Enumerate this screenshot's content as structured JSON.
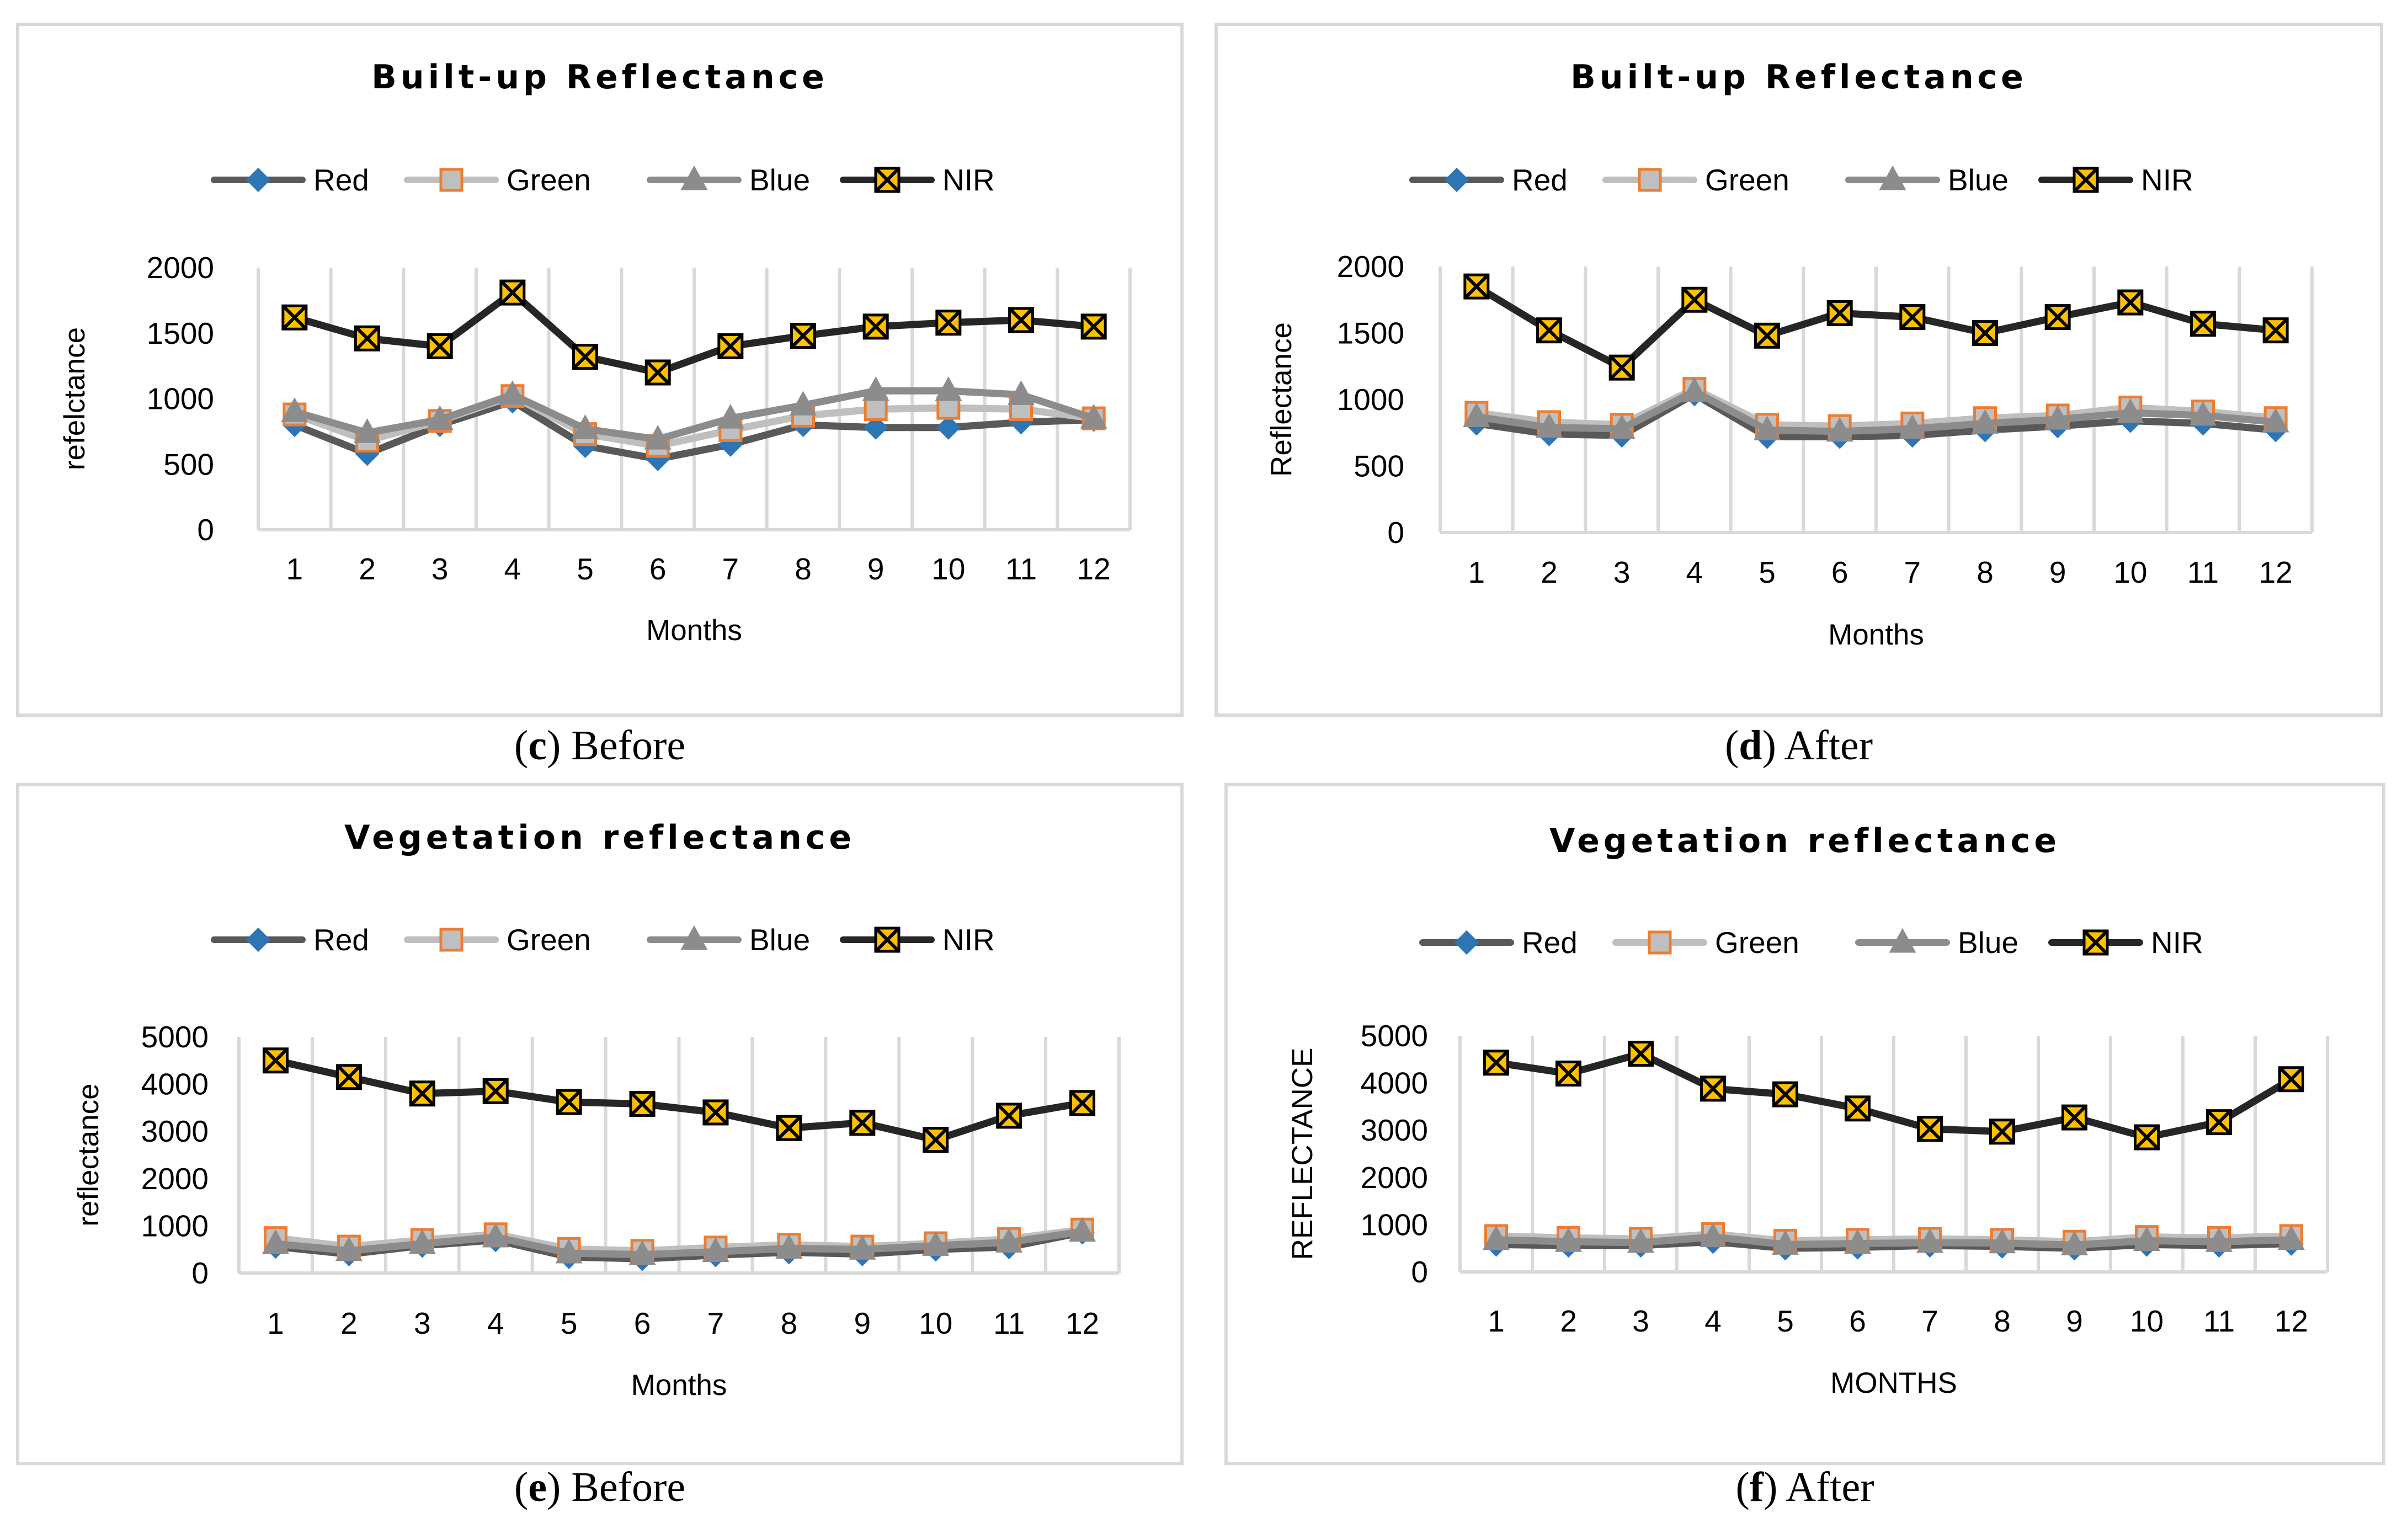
{
  "chart_data": [
    {
      "type": "line",
      "title": "Built-up Reflectance",
      "caption_letter": "c",
      "caption_text": " Before",
      "xlabel": "Months",
      "ylabel": "refelctance",
      "categories": [
        "1",
        "2",
        "3",
        "4",
        "5",
        "6",
        "7",
        "8",
        "9",
        "10",
        "11",
        "12"
      ],
      "ylim": [
        0,
        2000
      ],
      "yticks": [
        "0",
        "500",
        "1000",
        "1500",
        "2000"
      ],
      "ytick_values": [
        0,
        500,
        1000,
        1500,
        2000
      ],
      "legend_position": "top",
      "series": [
        {
          "name": "Red",
          "values": [
            800,
            580,
            800,
            980,
            640,
            540,
            650,
            800,
            780,
            780,
            820,
            840
          ]
        },
        {
          "name": "Green",
          "values": [
            880,
            680,
            830,
            1020,
            730,
            640,
            760,
            870,
            920,
            930,
            920,
            850
          ]
        },
        {
          "name": "Blue",
          "values": [
            900,
            740,
            840,
            1030,
            770,
            690,
            850,
            950,
            1060,
            1060,
            1030,
            850
          ]
        },
        {
          "name": "NIR",
          "values": [
            1620,
            1460,
            1400,
            1810,
            1320,
            1200,
            1400,
            1480,
            1550,
            1580,
            1600,
            1550
          ]
        }
      ]
    },
    {
      "type": "line",
      "title": "Built-up Reflectance",
      "caption_letter": "d",
      "caption_text": " After",
      "xlabel": "Months",
      "ylabel": "Reflectance",
      "categories": [
        "1",
        "2",
        "3",
        "4",
        "5",
        "6",
        "7",
        "8",
        "9",
        "10",
        "11",
        "12"
      ],
      "ylim": [
        0,
        2000
      ],
      "yticks": [
        "0",
        "500",
        "1000",
        "1500",
        "2000"
      ],
      "ytick_values": [
        0,
        500,
        1000,
        1500,
        2000
      ],
      "legend_position": "top",
      "series": [
        {
          "name": "Red",
          "values": [
            820,
            740,
            730,
            1040,
            720,
            720,
            730,
            770,
            800,
            840,
            820,
            770
          ]
        },
        {
          "name": "Green",
          "values": [
            900,
            830,
            810,
            1080,
            810,
            800,
            820,
            860,
            880,
            940,
            910,
            860
          ]
        },
        {
          "name": "Blue",
          "values": [
            870,
            790,
            780,
            1060,
            770,
            760,
            780,
            820,
            850,
            900,
            880,
            830
          ]
        },
        {
          "name": "NIR",
          "values": [
            1850,
            1520,
            1240,
            1750,
            1480,
            1650,
            1620,
            1500,
            1620,
            1730,
            1570,
            1520
          ]
        }
      ]
    },
    {
      "type": "line",
      "title": "Vegetation reflectance",
      "caption_letter": "e",
      "caption_text": " Before",
      "xlabel": "Months",
      "ylabel": "reflectance",
      "categories": [
        "1",
        "2",
        "3",
        "4",
        "5",
        "6",
        "7",
        "8",
        "9",
        "10",
        "11",
        "12"
      ],
      "ylim": [
        0,
        5000
      ],
      "yticks": [
        "0",
        "1000",
        "2000",
        "3000",
        "4000",
        "5000"
      ],
      "ytick_values": [
        0,
        1000,
        2000,
        3000,
        4000,
        5000
      ],
      "legend_position": "top",
      "series": [
        {
          "name": "Red",
          "values": [
            560,
            400,
            580,
            700,
            340,
            300,
            380,
            440,
            400,
            500,
            550,
            860
          ]
        },
        {
          "name": "Green",
          "values": [
            740,
            560,
            700,
            820,
            510,
            470,
            540,
            600,
            560,
            630,
            720,
            920
          ]
        },
        {
          "name": "Blue",
          "values": [
            620,
            470,
            620,
            760,
            420,
            390,
            450,
            520,
            500,
            580,
            650,
            880
          ]
        },
        {
          "name": "NIR",
          "values": [
            4500,
            4150,
            3800,
            3850,
            3620,
            3580,
            3400,
            3070,
            3180,
            2820,
            3330,
            3600
          ]
        }
      ]
    },
    {
      "type": "line",
      "title": "Vegetation reflectance",
      "caption_letter": "f",
      "caption_text": " After",
      "xlabel": "MONTHS",
      "ylabel": "REFLECTANCE",
      "categories": [
        "1",
        "2",
        "3",
        "4",
        "5",
        "6",
        "7",
        "8",
        "9",
        "10",
        "11",
        "12"
      ],
      "ylim": [
        0,
        5000
      ],
      "yticks": [
        "0",
        "1000",
        "2000",
        "3000",
        "4000",
        "5000"
      ],
      "ytick_values": [
        0,
        1000,
        2000,
        3000,
        4000,
        5000
      ],
      "legend_position": "top",
      "series": [
        {
          "name": "Red",
          "values": [
            580,
            560,
            560,
            640,
            500,
            520,
            560,
            540,
            500,
            580,
            560,
            600
          ]
        },
        {
          "name": "Green",
          "values": [
            760,
            720,
            700,
            800,
            660,
            680,
            700,
            680,
            640,
            740,
            720,
            760
          ]
        },
        {
          "name": "Blue",
          "values": [
            680,
            640,
            620,
            740,
            580,
            600,
            620,
            610,
            570,
            660,
            640,
            680
          ]
        },
        {
          "name": "NIR",
          "values": [
            4430,
            4200,
            4620,
            3880,
            3760,
            3460,
            3030,
            2970,
            3270,
            2850,
            3170,
            4080
          ]
        }
      ]
    }
  ],
  "legend_style": {
    "Red": {
      "line": "#595959",
      "marker": "diamond",
      "marker_fill": "#2e75b6",
      "marker_stroke": "#2e75b6"
    },
    "Green": {
      "line": "#bfbfbf",
      "marker": "square",
      "marker_fill": "#bfbfbf",
      "marker_stroke": "#ed7d31"
    },
    "Blue": {
      "line": "#8c8c8c",
      "marker": "triangle",
      "marker_fill": "#8c8c8c",
      "marker_stroke": "#8c8c8c"
    },
    "NIR": {
      "line": "#262626",
      "marker": "xbox",
      "marker_fill": "#ffc000",
      "marker_stroke": "#000000"
    }
  }
}
